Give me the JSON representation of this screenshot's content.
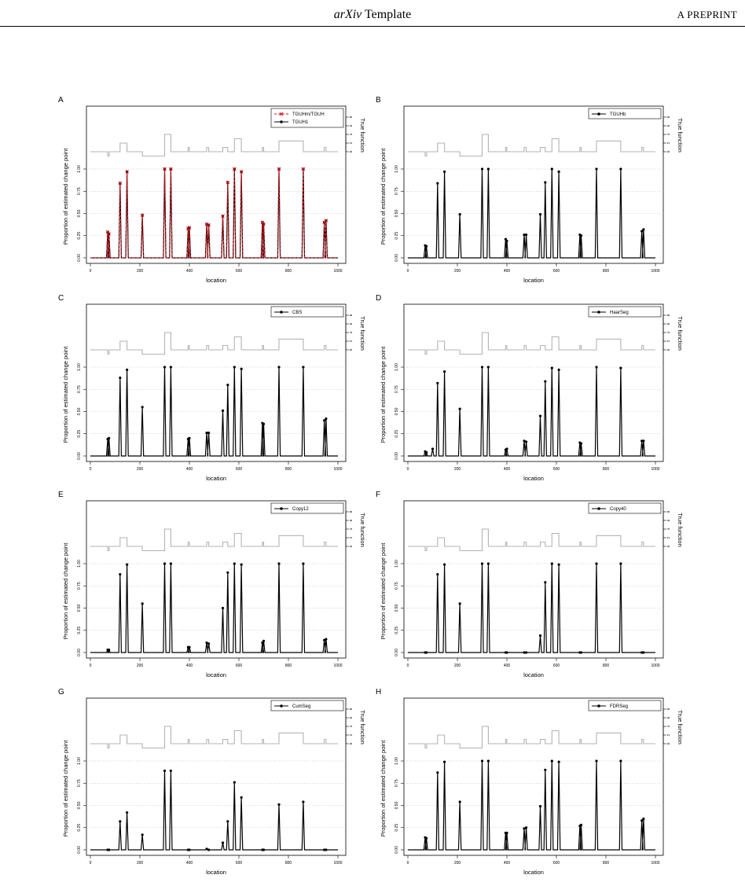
{
  "header": {
    "title_italic": "arXiv",
    "title_rest": " Template",
    "tag": "A PREPRINT"
  },
  "colors": {
    "true_function": "#b3b3b3",
    "grid": "#bdbdbd",
    "series_black": "#000000",
    "series_red": "#d4111b"
  },
  "chart_data": [
    {
      "type": "line",
      "panel": "A",
      "xlabel": "location",
      "ylabel": "Proportion of estimated change point",
      "xlim": [
        0,
        1000
      ],
      "ylim": [
        0,
        1
      ],
      "x_ticks": [
        "0",
        "200",
        "400",
        "600",
        "800",
        "1000"
      ],
      "y_ticks": [
        "0.00",
        "0.25",
        "0.50",
        "0.75",
        "1.00"
      ],
      "secondary_axis": {
        "label": "True function",
        "ticks": [
          "0",
          "2",
          "4",
          "6",
          "8"
        ]
      },
      "legend": [
        {
          "name": "TGUHm/TGUH",
          "marker": "x",
          "color": "#d4111b",
          "style": "dashed"
        },
        {
          "name": "TGUH1",
          "marker": "circle",
          "color": "#000000",
          "style": "solid"
        }
      ],
      "spikes": [
        [
          70,
          0.29
        ],
        [
          75,
          0.27
        ],
        [
          120,
          0.84
        ],
        [
          148,
          0.97
        ],
        [
          210,
          0.48
        ],
        [
          300,
          1.0
        ],
        [
          325,
          1.0
        ],
        [
          395,
          0.33
        ],
        [
          400,
          0.34
        ],
        [
          470,
          0.38
        ],
        [
          478,
          0.37
        ],
        [
          535,
          0.47
        ],
        [
          555,
          0.85
        ],
        [
          582,
          1.0
        ],
        [
          610,
          0.97
        ],
        [
          695,
          0.4
        ],
        [
          700,
          0.38
        ],
        [
          762,
          1.0
        ],
        [
          860,
          1.0
        ],
        [
          945,
          0.4
        ],
        [
          952,
          0.42
        ]
      ]
    },
    {
      "type": "line",
      "panel": "B",
      "xlabel": "location",
      "ylabel": "Proportion of estimated change point",
      "xlim": [
        0,
        1000
      ],
      "ylim": [
        0,
        1
      ],
      "x_ticks": [
        "0",
        "200",
        "400",
        "600",
        "800",
        "1000"
      ],
      "y_ticks": [
        "0.00",
        "0.25",
        "0.50",
        "0.75",
        "1.00"
      ],
      "secondary_axis": {
        "label": "True function",
        "ticks": [
          "0",
          "2",
          "4",
          "6",
          "8"
        ]
      },
      "legend": [
        {
          "name": "TGUHb",
          "marker": "circle",
          "color": "#000000",
          "style": "solid"
        }
      ],
      "spikes": [
        [
          70,
          0.14
        ],
        [
          75,
          0.13
        ],
        [
          120,
          0.84
        ],
        [
          148,
          0.97
        ],
        [
          210,
          0.49
        ],
        [
          300,
          1.0
        ],
        [
          325,
          1.0
        ],
        [
          395,
          0.21
        ],
        [
          400,
          0.19
        ],
        [
          470,
          0.26
        ],
        [
          478,
          0.26
        ],
        [
          535,
          0.49
        ],
        [
          555,
          0.85
        ],
        [
          582,
          1.0
        ],
        [
          610,
          0.97
        ],
        [
          695,
          0.26
        ],
        [
          700,
          0.25
        ],
        [
          762,
          1.0
        ],
        [
          860,
          1.0
        ],
        [
          945,
          0.3
        ],
        [
          952,
          0.32
        ]
      ]
    },
    {
      "type": "line",
      "panel": "C",
      "xlabel": "location",
      "ylabel": "Proportion of estimated change point",
      "xlim": [
        0,
        1000
      ],
      "ylim": [
        0,
        1
      ],
      "x_ticks": [
        "0",
        "200",
        "400",
        "600",
        "800",
        "1000"
      ],
      "y_ticks": [
        "0.00",
        "0.25",
        "0.50",
        "0.75",
        "1.00"
      ],
      "secondary_axis": {
        "label": "True function",
        "ticks": [
          "0",
          "2",
          "4",
          "6",
          "8"
        ]
      },
      "legend": [
        {
          "name": "CBS",
          "marker": "circle",
          "color": "#000000",
          "style": "solid"
        }
      ],
      "spikes": [
        [
          70,
          0.19
        ],
        [
          75,
          0.2
        ],
        [
          120,
          0.88
        ],
        [
          148,
          0.97
        ],
        [
          210,
          0.55
        ],
        [
          300,
          1.0
        ],
        [
          325,
          1.0
        ],
        [
          395,
          0.19
        ],
        [
          400,
          0.2
        ],
        [
          470,
          0.26
        ],
        [
          478,
          0.26
        ],
        [
          535,
          0.51
        ],
        [
          555,
          0.8
        ],
        [
          582,
          1.0
        ],
        [
          610,
          0.98
        ],
        [
          695,
          0.37
        ],
        [
          700,
          0.36
        ],
        [
          762,
          1.0
        ],
        [
          860,
          1.0
        ],
        [
          945,
          0.4
        ],
        [
          952,
          0.42
        ]
      ]
    },
    {
      "type": "line",
      "panel": "D",
      "xlabel": "location",
      "ylabel": "Proportion of estimated change point",
      "xlim": [
        0,
        1000
      ],
      "ylim": [
        0,
        1
      ],
      "x_ticks": [
        "0",
        "200",
        "400",
        "600",
        "800",
        "1000"
      ],
      "y_ticks": [
        "0.00",
        "0.25",
        "0.50",
        "0.75",
        "1.00"
      ],
      "secondary_axis": {
        "label": "True function",
        "ticks": [
          "0",
          "2",
          "4",
          "6",
          "8"
        ]
      },
      "legend": [
        {
          "name": "HaarSeg",
          "marker": "circle",
          "color": "#000000",
          "style": "solid"
        }
      ],
      "spikes": [
        [
          70,
          0.05
        ],
        [
          75,
          0.04
        ],
        [
          100,
          0.08
        ],
        [
          120,
          0.82
        ],
        [
          148,
          0.95
        ],
        [
          210,
          0.53
        ],
        [
          300,
          1.0
        ],
        [
          325,
          1.0
        ],
        [
          395,
          0.07
        ],
        [
          400,
          0.08
        ],
        [
          470,
          0.17
        ],
        [
          478,
          0.16
        ],
        [
          535,
          0.45
        ],
        [
          555,
          0.84
        ],
        [
          582,
          0.99
        ],
        [
          610,
          0.97
        ],
        [
          695,
          0.15
        ],
        [
          700,
          0.14
        ],
        [
          762,
          1.0
        ],
        [
          860,
          0.99
        ],
        [
          945,
          0.17
        ],
        [
          952,
          0.17
        ]
      ]
    },
    {
      "type": "line",
      "panel": "E",
      "xlabel": "location",
      "ylabel": "Proportion of estimated change point",
      "xlim": [
        0,
        1000
      ],
      "ylim": [
        0,
        1
      ],
      "x_ticks": [
        "0",
        "200",
        "400",
        "600",
        "800",
        "1000"
      ],
      "y_ticks": [
        "0.00",
        "0.25",
        "0.50",
        "0.75",
        "1.00"
      ],
      "secondary_axis": {
        "label": "True function",
        "ticks": [
          "0",
          "2",
          "4",
          "6",
          "8"
        ]
      },
      "legend": [
        {
          "name": "Copy12",
          "marker": "circle",
          "color": "#000000",
          "style": "solid"
        }
      ],
      "spikes": [
        [
          70,
          0.03
        ],
        [
          75,
          0.03
        ],
        [
          120,
          0.88
        ],
        [
          148,
          0.99
        ],
        [
          210,
          0.55
        ],
        [
          300,
          1.0
        ],
        [
          325,
          1.0
        ],
        [
          395,
          0.06
        ],
        [
          400,
          0.06
        ],
        [
          470,
          0.11
        ],
        [
          478,
          0.1
        ],
        [
          535,
          0.5
        ],
        [
          555,
          0.9
        ],
        [
          582,
          1.0
        ],
        [
          610,
          0.99
        ],
        [
          695,
          0.11
        ],
        [
          700,
          0.13
        ],
        [
          762,
          1.0
        ],
        [
          860,
          1.0
        ],
        [
          945,
          0.14
        ],
        [
          952,
          0.15
        ]
      ]
    },
    {
      "type": "line",
      "panel": "F",
      "xlabel": "location",
      "ylabel": "Proportion of estimated change point",
      "xlim": [
        0,
        1000
      ],
      "ylim": [
        0,
        1
      ],
      "x_ticks": [
        "0",
        "200",
        "400",
        "600",
        "800",
        "1000"
      ],
      "y_ticks": [
        "0.00",
        "0.25",
        "0.50",
        "0.75",
        "1.00"
      ],
      "secondary_axis": {
        "label": "True function",
        "ticks": [
          "0",
          "2",
          "4",
          "6",
          "8"
        ]
      },
      "legend": [
        {
          "name": "Copy40",
          "marker": "circle",
          "color": "#000000",
          "style": "solid"
        }
      ],
      "spikes": [
        [
          70,
          0.0
        ],
        [
          75,
          0.0
        ],
        [
          120,
          0.88
        ],
        [
          148,
          0.99
        ],
        [
          210,
          0.55
        ],
        [
          300,
          1.0
        ],
        [
          325,
          1.0
        ],
        [
          395,
          0.0
        ],
        [
          400,
          0.0
        ],
        [
          470,
          0.0
        ],
        [
          478,
          0.0
        ],
        [
          535,
          0.19
        ],
        [
          555,
          0.79
        ],
        [
          582,
          1.0
        ],
        [
          610,
          0.99
        ],
        [
          695,
          0.0
        ],
        [
          700,
          0.0
        ],
        [
          762,
          1.0
        ],
        [
          860,
          1.0
        ],
        [
          945,
          0.0
        ],
        [
          952,
          0.0
        ]
      ]
    },
    {
      "type": "line",
      "panel": "G",
      "xlabel": "location",
      "ylabel": "Proportion of estimated change point",
      "xlim": [
        0,
        1000
      ],
      "ylim": [
        0,
        1
      ],
      "x_ticks": [
        "0",
        "200",
        "400",
        "600",
        "800",
        "1000"
      ],
      "y_ticks": [
        "0.00",
        "0.25",
        "0.50",
        "0.75",
        "1.00"
      ],
      "secondary_axis": {
        "label": "True function",
        "ticks": [
          "0",
          "2",
          "4",
          "6",
          "8"
        ]
      },
      "legend": [
        {
          "name": "CumSeg",
          "marker": "circle",
          "color": "#000000",
          "style": "solid"
        }
      ],
      "spikes": [
        [
          70,
          0.0
        ],
        [
          75,
          0.0
        ],
        [
          120,
          0.32
        ],
        [
          148,
          0.42
        ],
        [
          210,
          0.17
        ],
        [
          300,
          0.89
        ],
        [
          325,
          0.89
        ],
        [
          395,
          0.0
        ],
        [
          400,
          0.0
        ],
        [
          470,
          0.01
        ],
        [
          478,
          0.0
        ],
        [
          535,
          0.08
        ],
        [
          555,
          0.32
        ],
        [
          582,
          0.76
        ],
        [
          610,
          0.59
        ],
        [
          695,
          0.0
        ],
        [
          700,
          0.0
        ],
        [
          762,
          0.51
        ],
        [
          860,
          0.54
        ],
        [
          945,
          0.0
        ],
        [
          952,
          0.0
        ]
      ]
    },
    {
      "type": "line",
      "panel": "H",
      "xlabel": "location",
      "ylabel": "Proportion of estimated change point",
      "xlim": [
        0,
        1000
      ],
      "ylim": [
        0,
        1
      ],
      "x_ticks": [
        "0",
        "200",
        "400",
        "600",
        "800",
        "1000"
      ],
      "y_ticks": [
        "0.00",
        "0.25",
        "0.50",
        "0.75",
        "1.00"
      ],
      "secondary_axis": {
        "label": "True function",
        "ticks": [
          "0",
          "2",
          "4",
          "6",
          "8"
        ]
      },
      "legend": [
        {
          "name": "FDRSeg",
          "marker": "circle",
          "color": "#000000",
          "style": "solid"
        }
      ],
      "spikes": [
        [
          70,
          0.14
        ],
        [
          75,
          0.13
        ],
        [
          120,
          0.87
        ],
        [
          148,
          0.99
        ],
        [
          210,
          0.54
        ],
        [
          300,
          1.0
        ],
        [
          325,
          1.0
        ],
        [
          395,
          0.19
        ],
        [
          400,
          0.19
        ],
        [
          470,
          0.24
        ],
        [
          478,
          0.25
        ],
        [
          535,
          0.49
        ],
        [
          555,
          0.9
        ],
        [
          582,
          1.0
        ],
        [
          610,
          0.99
        ],
        [
          695,
          0.27
        ],
        [
          700,
          0.28
        ],
        [
          762,
          1.0
        ],
        [
          860,
          1.0
        ],
        [
          945,
          0.33
        ],
        [
          952,
          0.35
        ]
      ]
    }
  ],
  "true_function": {
    "breakpoints": [
      0,
      70,
      76,
      120,
      148,
      210,
      300,
      325,
      395,
      400,
      470,
      478,
      535,
      555,
      582,
      610,
      695,
      700,
      762,
      860,
      945,
      952,
      1000
    ],
    "levels": [
      0,
      -1,
      0,
      2,
      0,
      -1,
      4,
      0,
      1,
      0,
      1,
      0,
      1,
      0,
      3,
      0,
      1,
      0,
      2.5,
      0,
      1,
      0
    ]
  }
}
